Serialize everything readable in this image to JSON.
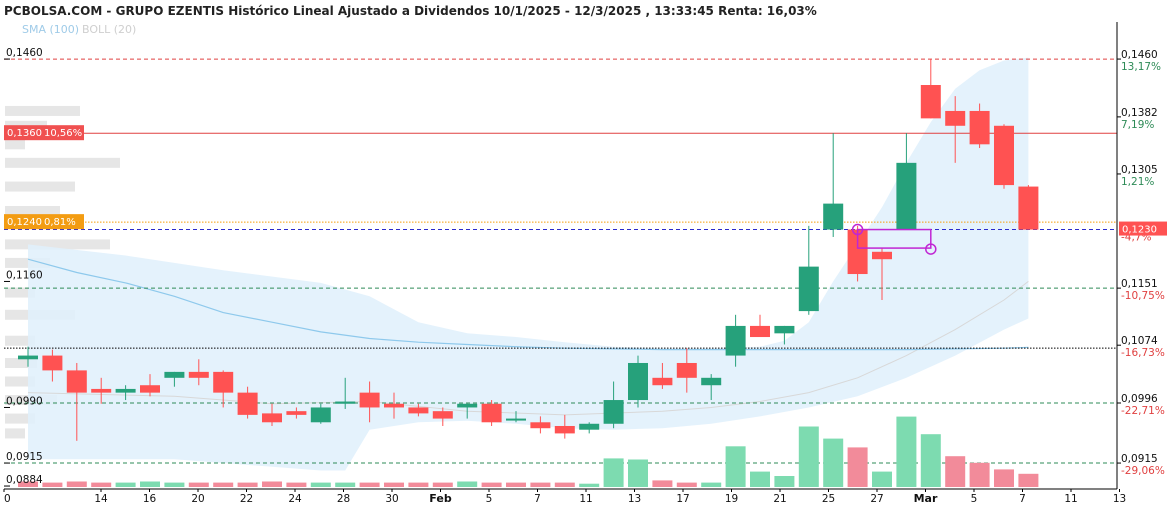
{
  "header": {
    "title": "PCBOLSA.COM - GRUPO EZENTIS Histórico Lineal Ajustado a Dividendos 10/1/2025 - 12/3/2025 , 13:33:45 Renta: 16,03%",
    "legend_sma": "SMA (100)",
    "legend_boll": "BOLL (20)"
  },
  "colors": {
    "up": "#26a17b",
    "down": "#ff5252",
    "vol_up": "#7ddbb0",
    "vol_down": "#f28b9a",
    "band_fill": "#dff0fb",
    "sma": "#8ec9ec",
    "profile": "#e6e6e6",
    "zone": "#c026d3",
    "ref_red": "#e04040",
    "ref_orange": "#f59e0b",
    "ref_blue": "#2b2bcc",
    "ref_green": "#2e8b57",
    "ref_black": "#000000"
  },
  "chart_data": {
    "type": "candlestick",
    "ylim": [
      0.088,
      0.151
    ],
    "left_ticks": [
      "0,1460",
      "0,1160",
      "0,0990",
      "0,0915",
      "0,0884"
    ],
    "right_ticks": [
      {
        "price": 0.146,
        "label": "0,1460",
        "pct": "13,17%",
        "pct_color": "#2e8b57"
      },
      {
        "price": 0.1382,
        "label": "0,1382",
        "pct": "7,19%",
        "pct_color": "#2e8b57"
      },
      {
        "price": 0.1305,
        "label": "0,1305",
        "pct": "1,21%",
        "pct_color": "#2e8b57"
      },
      {
        "price": 0.1151,
        "label": "0,1151",
        "pct": "-10,75%",
        "pct_color": "#e04040"
      },
      {
        "price": 0.1074,
        "label": "0,1074",
        "pct": "-16,73%",
        "pct_color": "#e04040"
      },
      {
        "price": 0.0996,
        "label": "0,0996",
        "pct": "-22,71%",
        "pct_color": "#e04040"
      },
      {
        "price": 0.0915,
        "label": "0,0915",
        "pct": "-29,06%",
        "pct_color": "#e04040"
      }
    ],
    "last_price": {
      "value": 0.123,
      "label": "0,1230",
      "pct": "-4,7%"
    },
    "price_tags": [
      {
        "value": 0.136,
        "label": "0,1360",
        "pct": "10,56%",
        "color": "#f05050"
      },
      {
        "value": 0.124,
        "label": "0,1240",
        "pct": "0,81%",
        "color": "#f39c12"
      }
    ],
    "ref_lines": [
      {
        "value": 0.146,
        "style": "dashed",
        "color": "#e04040"
      },
      {
        "value": 0.136,
        "style": "solid",
        "color": "#e04040"
      },
      {
        "value": 0.124,
        "style": "dotted",
        "color": "#f59e0b"
      },
      {
        "value": 0.123,
        "style": "dashed",
        "color": "#2b2bcc"
      },
      {
        "value": 0.1151,
        "style": "dashed",
        "color": "#2e8b57"
      },
      {
        "value": 0.107,
        "style": "dotted",
        "color": "#000000"
      },
      {
        "value": 0.0996,
        "style": "dashed",
        "color": "#2e8b57"
      },
      {
        "value": 0.0915,
        "style": "dashed",
        "color": "#2e8b57"
      }
    ],
    "x_labels": [
      {
        "label": "0",
        "day": 0,
        "bold": false
      },
      {
        "label": "14",
        "day": 4,
        "bold": false
      },
      {
        "label": "16",
        "day": 6,
        "bold": false
      },
      {
        "label": "20",
        "day": 8,
        "bold": false
      },
      {
        "label": "22",
        "day": 10,
        "bold": false
      },
      {
        "label": "24",
        "day": 12,
        "bold": false
      },
      {
        "label": "28",
        "day": 14,
        "bold": false
      },
      {
        "label": "30",
        "day": 16,
        "bold": false
      },
      {
        "label": "Feb",
        "day": 18,
        "bold": true
      },
      {
        "label": "5",
        "day": 20,
        "bold": false
      },
      {
        "label": "7",
        "day": 22,
        "bold": false
      },
      {
        "label": "11",
        "day": 24,
        "bold": false
      },
      {
        "label": "13",
        "day": 26,
        "bold": false
      },
      {
        "label": "17",
        "day": 28,
        "bold": false
      },
      {
        "label": "19",
        "day": 30,
        "bold": false
      },
      {
        "label": "21",
        "day": 32,
        "bold": false
      },
      {
        "label": "25",
        "day": 34,
        "bold": false
      },
      {
        "label": "27",
        "day": 36,
        "bold": false
      },
      {
        "label": "Mar",
        "day": 38,
        "bold": true
      },
      {
        "label": "5",
        "day": 40,
        "bold": false
      },
      {
        "label": "7",
        "day": 42,
        "bold": false
      },
      {
        "label": "11",
        "day": 44,
        "bold": false
      },
      {
        "label": "13",
        "day": 46,
        "bold": false
      }
    ],
    "candles": [
      {
        "i": 0,
        "o": 0.1055,
        "h": 0.1072,
        "l": 0.1045,
        "c": 0.106
      },
      {
        "i": 1,
        "o": 0.106,
        "h": 0.1068,
        "l": 0.1025,
        "c": 0.104
      },
      {
        "i": 2,
        "o": 0.104,
        "h": 0.105,
        "l": 0.0945,
        "c": 0.101
      },
      {
        "i": 3,
        "o": 0.1015,
        "h": 0.103,
        "l": 0.0995,
        "c": 0.101
      },
      {
        "i": 4,
        "o": 0.101,
        "h": 0.102,
        "l": 0.1,
        "c": 0.1015
      },
      {
        "i": 5,
        "o": 0.102,
        "h": 0.1035,
        "l": 0.1005,
        "c": 0.101
      },
      {
        "i": 6,
        "o": 0.103,
        "h": 0.1038,
        "l": 0.1018,
        "c": 0.1038
      },
      {
        "i": 7,
        "o": 0.1038,
        "h": 0.1055,
        "l": 0.102,
        "c": 0.103
      },
      {
        "i": 8,
        "o": 0.1038,
        "h": 0.104,
        "l": 0.099,
        "c": 0.101
      },
      {
        "i": 9,
        "o": 0.101,
        "h": 0.1018,
        "l": 0.0975,
        "c": 0.098
      },
      {
        "i": 10,
        "o": 0.0982,
        "h": 0.0995,
        "l": 0.0965,
        "c": 0.097
      },
      {
        "i": 11,
        "o": 0.0985,
        "h": 0.099,
        "l": 0.0975,
        "c": 0.098
      },
      {
        "i": 12,
        "o": 0.097,
        "h": 0.0995,
        "l": 0.0968,
        "c": 0.099
      },
      {
        "i": 13,
        "o": 0.0995,
        "h": 0.103,
        "l": 0.0988,
        "c": 0.0998
      },
      {
        "i": 14,
        "o": 0.101,
        "h": 0.1025,
        "l": 0.097,
        "c": 0.099
      },
      {
        "i": 15,
        "o": 0.0995,
        "h": 0.101,
        "l": 0.0975,
        "c": 0.099
      },
      {
        "i": 16,
        "o": 0.099,
        "h": 0.0995,
        "l": 0.0978,
        "c": 0.0982
      },
      {
        "i": 17,
        "o": 0.0985,
        "h": 0.099,
        "l": 0.0965,
        "c": 0.0975
      },
      {
        "i": 18,
        "o": 0.099,
        "h": 0.0995,
        "l": 0.0975,
        "c": 0.0995
      },
      {
        "i": 19,
        "o": 0.0995,
        "h": 0.1,
        "l": 0.0965,
        "c": 0.097
      },
      {
        "i": 20,
        "o": 0.0975,
        "h": 0.0985,
        "l": 0.097,
        "c": 0.0975
      },
      {
        "i": 21,
        "o": 0.097,
        "h": 0.0978,
        "l": 0.0955,
        "c": 0.0962
      },
      {
        "i": 22,
        "o": 0.0965,
        "h": 0.098,
        "l": 0.0948,
        "c": 0.0955
      },
      {
        "i": 23,
        "o": 0.096,
        "h": 0.097,
        "l": 0.0955,
        "c": 0.0968
      },
      {
        "i": 24,
        "o": 0.0968,
        "h": 0.1025,
        "l": 0.0962,
        "c": 0.1
      },
      {
        "i": 25,
        "o": 0.1,
        "h": 0.106,
        "l": 0.099,
        "c": 0.105
      },
      {
        "i": 26,
        "o": 0.103,
        "h": 0.105,
        "l": 0.1015,
        "c": 0.102
      },
      {
        "i": 27,
        "o": 0.105,
        "h": 0.107,
        "l": 0.101,
        "c": 0.103
      },
      {
        "i": 28,
        "o": 0.102,
        "h": 0.1035,
        "l": 0.1,
        "c": 0.103
      },
      {
        "i": 29,
        "o": 0.106,
        "h": 0.1115,
        "l": 0.1045,
        "c": 0.11
      },
      {
        "i": 30,
        "o": 0.11,
        "h": 0.1115,
        "l": 0.1085,
        "c": 0.1085
      },
      {
        "i": 31,
        "o": 0.109,
        "h": 0.11,
        "l": 0.1075,
        "c": 0.11
      },
      {
        "i": 32,
        "o": 0.112,
        "h": 0.1235,
        "l": 0.1115,
        "c": 0.118
      },
      {
        "i": 33,
        "o": 0.123,
        "h": 0.136,
        "l": 0.122,
        "c": 0.1265
      },
      {
        "i": 34,
        "o": 0.123,
        "h": 0.1235,
        "l": 0.116,
        "c": 0.117
      },
      {
        "i": 35,
        "o": 0.12,
        "h": 0.1205,
        "l": 0.1135,
        "c": 0.119
      },
      {
        "i": 36,
        "o": 0.123,
        "h": 0.136,
        "l": 0.123,
        "c": 0.132
      },
      {
        "i": 37,
        "o": 0.1425,
        "h": 0.146,
        "l": 0.138,
        "c": 0.138
      },
      {
        "i": 38,
        "o": 0.139,
        "h": 0.141,
        "l": 0.132,
        "c": 0.137
      },
      {
        "i": 39,
        "o": 0.139,
        "h": 0.14,
        "l": 0.134,
        "c": 0.1345
      },
      {
        "i": 40,
        "o": 0.137,
        "h": 0.1372,
        "l": 0.1285,
        "c": 0.129
      },
      {
        "i": 41,
        "o": 0.1288,
        "h": 0.129,
        "l": 0.123,
        "c": 0.123
      }
    ],
    "volumes": [
      {
        "i": 0,
        "v": 5,
        "up": false
      },
      {
        "i": 1,
        "v": 4,
        "up": false
      },
      {
        "i": 2,
        "v": 5,
        "up": false
      },
      {
        "i": 3,
        "v": 4,
        "up": false
      },
      {
        "i": 4,
        "v": 4,
        "up": true
      },
      {
        "i": 5,
        "v": 5,
        "up": true
      },
      {
        "i": 6,
        "v": 4,
        "up": true
      },
      {
        "i": 7,
        "v": 4,
        "up": false
      },
      {
        "i": 8,
        "v": 4,
        "up": false
      },
      {
        "i": 9,
        "v": 4,
        "up": false
      },
      {
        "i": 10,
        "v": 5,
        "up": false
      },
      {
        "i": 11,
        "v": 4,
        "up": false
      },
      {
        "i": 12,
        "v": 4,
        "up": true
      },
      {
        "i": 13,
        "v": 4,
        "up": true
      },
      {
        "i": 14,
        "v": 4,
        "up": false
      },
      {
        "i": 15,
        "v": 4,
        "up": false
      },
      {
        "i": 16,
        "v": 4,
        "up": false
      },
      {
        "i": 17,
        "v": 4,
        "up": false
      },
      {
        "i": 18,
        "v": 5,
        "up": true
      },
      {
        "i": 19,
        "v": 4,
        "up": false
      },
      {
        "i": 20,
        "v": 4,
        "up": false
      },
      {
        "i": 21,
        "v": 4,
        "up": false
      },
      {
        "i": 22,
        "v": 4,
        "up": false
      },
      {
        "i": 23,
        "v": 3,
        "up": true
      },
      {
        "i": 24,
        "v": 26,
        "up": true
      },
      {
        "i": 25,
        "v": 25,
        "up": true
      },
      {
        "i": 26,
        "v": 6,
        "up": false
      },
      {
        "i": 27,
        "v": 4,
        "up": false
      },
      {
        "i": 28,
        "v": 4,
        "up": true
      },
      {
        "i": 29,
        "v": 37,
        "up": true
      },
      {
        "i": 30,
        "v": 14,
        "up": true
      },
      {
        "i": 31,
        "v": 10,
        "up": true
      },
      {
        "i": 32,
        "v": 55,
        "up": true
      },
      {
        "i": 33,
        "v": 44,
        "up": true
      },
      {
        "i": 34,
        "v": 36,
        "up": false
      },
      {
        "i": 35,
        "v": 14,
        "up": true
      },
      {
        "i": 36,
        "v": 64,
        "up": true
      },
      {
        "i": 37,
        "v": 48,
        "up": true
      },
      {
        "i": 38,
        "v": 28,
        "up": false
      },
      {
        "i": 39,
        "v": 22,
        "up": false
      },
      {
        "i": 40,
        "v": 16,
        "up": false
      },
      {
        "i": 41,
        "v": 12,
        "up": false
      }
    ],
    "bollinger": {
      "upper": [
        [
          0,
          0.121
        ],
        [
          4,
          0.1195
        ],
        [
          8,
          0.1175
        ],
        [
          12,
          0.1158
        ],
        [
          14,
          0.114
        ],
        [
          16,
          0.1105
        ],
        [
          18,
          0.109
        ],
        [
          20,
          0.1085
        ],
        [
          22,
          0.1078
        ],
        [
          24,
          0.1072
        ],
        [
          26,
          0.107
        ],
        [
          28,
          0.107
        ],
        [
          30,
          0.1072
        ],
        [
          31,
          0.108
        ],
        [
          32,
          0.1105
        ],
        [
          33,
          0.116
        ],
        [
          34,
          0.121
        ],
        [
          35,
          0.126
        ],
        [
          36,
          0.132
        ],
        [
          37,
          0.1375
        ],
        [
          38,
          0.142
        ],
        [
          39,
          0.1445
        ],
        [
          40,
          0.1458
        ],
        [
          41,
          0.1462
        ]
      ],
      "lower": [
        [
          0,
          0.092
        ],
        [
          6,
          0.092
        ],
        [
          12,
          0.0905
        ],
        [
          13,
          0.0905
        ],
        [
          14,
          0.096
        ],
        [
          16,
          0.097
        ],
        [
          18,
          0.0972
        ],
        [
          20,
          0.0968
        ],
        [
          22,
          0.0962
        ],
        [
          24,
          0.096
        ],
        [
          26,
          0.0962
        ],
        [
          28,
          0.0968
        ],
        [
          30,
          0.0978
        ],
        [
          32,
          0.099
        ],
        [
          34,
          0.1005
        ],
        [
          36,
          0.103
        ],
        [
          38,
          0.106
        ],
        [
          40,
          0.1095
        ],
        [
          41,
          0.111
        ]
      ],
      "mid": [
        [
          0,
          0.101
        ],
        [
          6,
          0.1005
        ],
        [
          10,
          0.0995
        ],
        [
          14,
          0.0998
        ],
        [
          18,
          0.0985
        ],
        [
          22,
          0.098
        ],
        [
          26,
          0.0985
        ],
        [
          28,
          0.099
        ],
        [
          30,
          0.0998
        ],
        [
          32,
          0.101
        ],
        [
          34,
          0.103
        ],
        [
          36,
          0.106
        ],
        [
          38,
          0.1095
        ],
        [
          40,
          0.1135
        ],
        [
          41,
          0.116
        ]
      ]
    },
    "sma100": [
      [
        0,
        0.119
      ],
      [
        2,
        0.1172
      ],
      [
        4,
        0.1158
      ],
      [
        6,
        0.114
      ],
      [
        8,
        0.1118
      ],
      [
        10,
        0.1105
      ],
      [
        12,
        0.1092
      ],
      [
        14,
        0.1083
      ],
      [
        16,
        0.1078
      ],
      [
        18,
        0.1075
      ],
      [
        20,
        0.1072
      ],
      [
        22,
        0.107
      ],
      [
        24,
        0.1069
      ],
      [
        26,
        0.1068
      ],
      [
        28,
        0.1068
      ],
      [
        30,
        0.1068
      ],
      [
        32,
        0.1068
      ],
      [
        34,
        0.1068
      ],
      [
        36,
        0.1068
      ],
      [
        38,
        0.1069
      ],
      [
        40,
        0.107
      ],
      [
        41,
        0.1071
      ]
    ],
    "volume_profile": [
      {
        "price": 0.139,
        "width": 75
      },
      {
        "price": 0.137,
        "width": 42
      },
      {
        "price": 0.1345,
        "width": 20
      },
      {
        "price": 0.132,
        "width": 115
      },
      {
        "price": 0.1288,
        "width": 70
      },
      {
        "price": 0.1255,
        "width": 55
      },
      {
        "price": 0.121,
        "width": 105
      },
      {
        "price": 0.1185,
        "width": 45
      },
      {
        "price": 0.1145,
        "width": 30
      },
      {
        "price": 0.1115,
        "width": 70
      },
      {
        "price": 0.108,
        "width": 30
      },
      {
        "price": 0.105,
        "width": 32
      },
      {
        "price": 0.1025,
        "width": 30
      },
      {
        "price": 0.1,
        "width": 52
      },
      {
        "price": 0.0975,
        "width": 30
      },
      {
        "price": 0.0955,
        "width": 20
      }
    ],
    "zone": {
      "i_start": 34,
      "i_end": 37,
      "p_top": 0.123,
      "p_bottom": 0.1205
    }
  }
}
